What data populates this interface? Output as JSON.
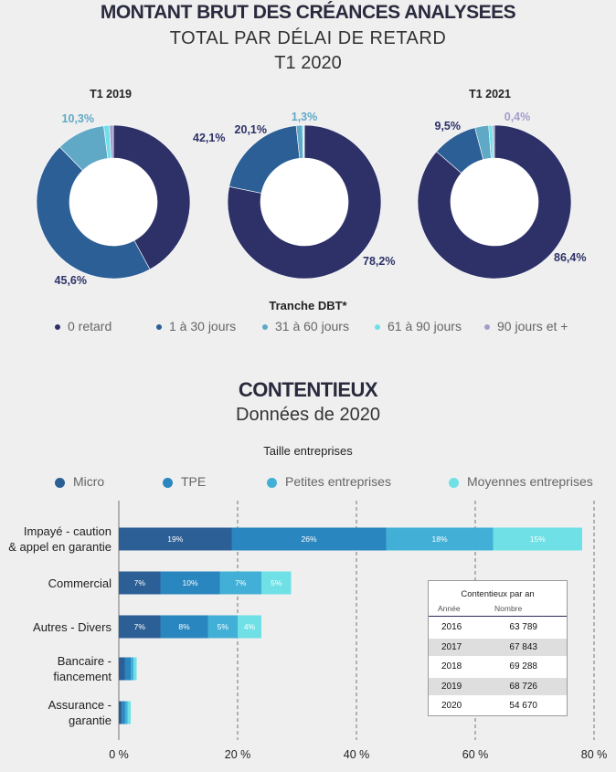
{
  "header": {
    "title": "MONTANT BRUT DES CRÉANCES ANALYSEES",
    "subtitle": "TOTAL PAR DÉLAI DE RETARD",
    "period": "T1 2020"
  },
  "donut_section": {
    "legend_title": "Tranche DBT*"
  },
  "contentieux": {
    "title": "CONTENTIEUX",
    "subtitle": "Données de 2020",
    "legend_title": "Taille entreprises"
  },
  "colors": {
    "retard0": "#2d3168",
    "j1_30": "#2c5f96",
    "j31_60": "#5fa9c6",
    "j61_90": "#6fe0ea",
    "j90plus": "#a39ccc",
    "micro": "#2c5f96",
    "tpe": "#2a86be",
    "petites": "#42b0d6",
    "moyennes": "#6ee0e6"
  },
  "chart_data": [
    {
      "type": "pie",
      "title": "T1 2019",
      "labels": [
        "0 retard",
        "1 à 30 jours",
        "31 à 60 jours",
        "61 à 90 jours",
        "90 jours et +"
      ],
      "values": [
        42.1,
        45.6,
        10.3,
        1.2,
        0.8
      ],
      "data_labels": [
        "42,1%",
        "45,6%",
        "10,3%",
        "",
        ""
      ]
    },
    {
      "type": "pie",
      "title": "",
      "labels": [
        "0 retard",
        "1 à 30 jours",
        "31 à 60 jours",
        "61 à 90 jours",
        "90 jours et +"
      ],
      "values": [
        78.2,
        20.1,
        1.3,
        0.3,
        0.1
      ],
      "data_labels": [
        "78,2%",
        "20,1%",
        "1,3%",
        "",
        ""
      ]
    },
    {
      "type": "pie",
      "title": "T1 2021",
      "labels": [
        "0 retard",
        "1 à 30 jours",
        "31 à 60 jours",
        "61 à 90 jours",
        "90 jours et +"
      ],
      "values": [
        86.4,
        9.5,
        2.9,
        0.8,
        0.4
      ],
      "data_labels": [
        "86,4%",
        "9,5%",
        "",
        "",
        "0,4%"
      ]
    },
    {
      "type": "bar",
      "orientation": "horizontal",
      "stacked": true,
      "categories": [
        "Impayé - caution & appel en garantie",
        "Commercial",
        "Autres - Divers",
        "Bancaire - fiancement",
        "Assurance - garantie"
      ],
      "series": [
        {
          "name": "Micro",
          "values": [
            19,
            7,
            7,
            1,
            0.5
          ],
          "labels": [
            "19%",
            "7%",
            "7%",
            "",
            ""
          ]
        },
        {
          "name": "TPE",
          "values": [
            26,
            10,
            8,
            1,
            0.5
          ],
          "labels": [
            "26%",
            "10%",
            "8%",
            "",
            ""
          ]
        },
        {
          "name": "Petites entreprises",
          "values": [
            18,
            7,
            5,
            0.5,
            0.5
          ],
          "labels": [
            "18%",
            "7%",
            "5%",
            "",
            ""
          ]
        },
        {
          "name": "Moyennes entreprises",
          "values": [
            15,
            5,
            4,
            0.5,
            0.5
          ],
          "labels": [
            "15%",
            "5%",
            "4%",
            "",
            ""
          ]
        }
      ],
      "xlim": [
        0,
        80
      ],
      "xticks": [
        "0 %",
        "20 %",
        "40 %",
        "60 %",
        "80 %"
      ],
      "grid": "vertical dashed"
    },
    {
      "type": "table",
      "title": "Contentieux par an",
      "columns": [
        "Année",
        "Nombre"
      ],
      "rows": [
        [
          "2016",
          "63 789"
        ],
        [
          "2017",
          "67 843"
        ],
        [
          "2018",
          "69 288"
        ],
        [
          "2019",
          "68 726"
        ],
        [
          "2020",
          "54 670"
        ]
      ]
    }
  ]
}
